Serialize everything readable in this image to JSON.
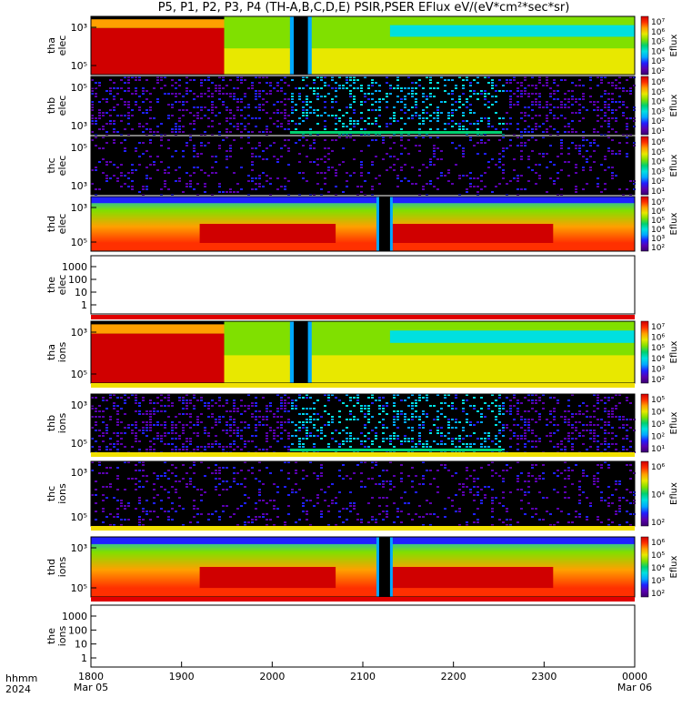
{
  "title": "P5, P1, P2, P3, P4 (TH-A,B,C,D,E) PSIR,PSER EFlux eV/(eV*cm²*sec*sr)",
  "footer": {
    "label_line1": "hhmm",
    "label_line2": "2024"
  },
  "colors": {
    "spectrum": [
      "#3a0070",
      "#5a00b0",
      "#2020ff",
      "#00a8ff",
      "#00e0e0",
      "#00d070",
      "#80e000",
      "#e8e800",
      "#ffa000",
      "#ff3000",
      "#d00000"
    ]
  },
  "chart_data": {
    "type": "heatmap",
    "x_ticks": [
      {
        "label": "1800",
        "sub": "Mar 05"
      },
      {
        "label": "1900",
        "sub": ""
      },
      {
        "label": "2000",
        "sub": ""
      },
      {
        "label": "2100",
        "sub": ""
      },
      {
        "label": "2200",
        "sub": ""
      },
      {
        "label": "2300",
        "sub": ""
      },
      {
        "label": "0000",
        "sub": "Mar 06"
      }
    ],
    "panels": [
      {
        "probe": "tha",
        "species": "elec",
        "yticks": [
          "10³",
          "10⁵"
        ],
        "cbar": [
          "10⁷",
          "10⁶",
          "10⁵",
          "10⁴",
          "10³",
          "10²"
        ],
        "cbar_label": "Eflux",
        "kind": "hot"
      },
      {
        "probe": "thb",
        "species": "elec",
        "yticks": [
          "10⁵",
          "10³"
        ],
        "cbar": [
          "10⁶",
          "10⁵",
          "10⁴",
          "10³",
          "10²",
          "10¹"
        ],
        "cbar_label": "Eflux",
        "kind": "noise"
      },
      {
        "probe": "thc",
        "species": "elec",
        "yticks": [
          "10⁵",
          "10³"
        ],
        "cbar": [
          "10⁶",
          "10⁵",
          "10⁴",
          "10³",
          "10²",
          "10¹"
        ],
        "cbar_label": "Eflux",
        "kind": "sparse"
      },
      {
        "probe": "thd",
        "species": "elec",
        "yticks": [
          "10³",
          "10⁵"
        ],
        "cbar": [
          "10⁷",
          "10⁶",
          "10⁵",
          "10⁴",
          "10³",
          "10²"
        ],
        "cbar_label": "Eflux",
        "kind": "warm"
      },
      {
        "probe": "the",
        "species": "elec",
        "yticks": [
          "1000",
          "100",
          "10",
          "1"
        ],
        "cbar": [],
        "cbar_label": "",
        "kind": "empty"
      },
      {
        "probe": "tha",
        "species": "ions",
        "yticks": [
          "10³",
          "10⁵"
        ],
        "cbar": [
          "10⁷",
          "10⁶",
          "10⁵",
          "10⁴",
          "10³",
          "10²"
        ],
        "cbar_label": "Eflux",
        "kind": "hot"
      },
      {
        "probe": "thb",
        "species": "ions",
        "yticks": [
          "10³",
          "10⁵"
        ],
        "cbar": [
          "10⁵",
          "10⁴",
          "10³",
          "10²",
          "10¹"
        ],
        "cbar_label": "Eflux",
        "kind": "noise"
      },
      {
        "probe": "thc",
        "species": "ions",
        "yticks": [
          "10³",
          "10⁵"
        ],
        "cbar": [
          "10⁶",
          "10⁴",
          "10²"
        ],
        "cbar_label": "Eflux",
        "kind": "sparse"
      },
      {
        "probe": "thd",
        "species": "ions",
        "yticks": [
          "10³",
          "10⁵"
        ],
        "cbar": [
          "10⁶",
          "10⁵",
          "10⁴",
          "10³",
          "10²"
        ],
        "cbar_label": "Eflux",
        "kind": "warm"
      },
      {
        "probe": "the",
        "species": "ions",
        "yticks": [
          "1000",
          "100",
          "10",
          "1"
        ],
        "cbar": [],
        "cbar_label": "",
        "kind": "empty"
      }
    ]
  }
}
